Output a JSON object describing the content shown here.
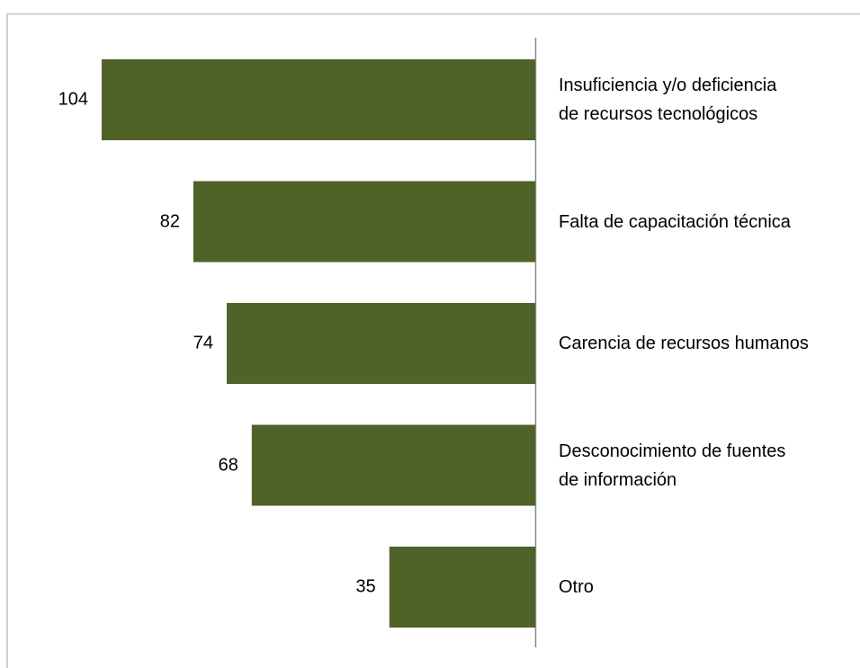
{
  "chart_data": {
    "type": "bar",
    "orientation": "horizontal",
    "categories": [
      "Insuficiencia y/o deficiencia\nde recursos tecnológicos",
      "Falta de capacitación técnica",
      "Carencia de recursos humanos",
      "Desconocimiento de fuentes\nde información",
      "Otro"
    ],
    "values": [
      104,
      82,
      74,
      68,
      35
    ],
    "color": "#4f6228"
  }
}
